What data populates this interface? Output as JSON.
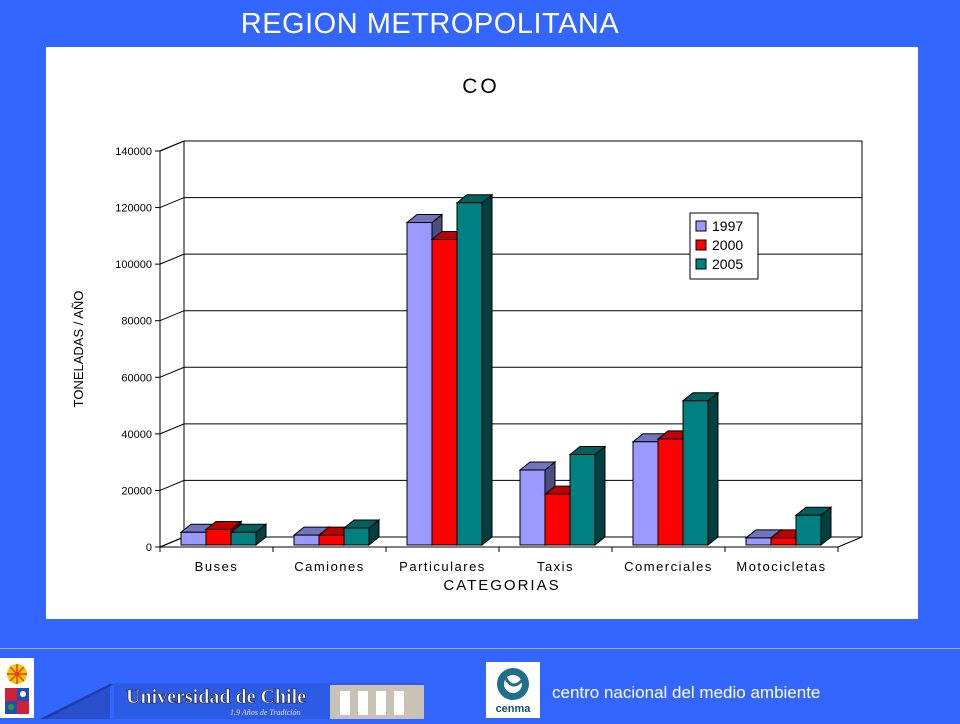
{
  "slide": {
    "title": "REGION METROPOLITANA"
  },
  "footer": {
    "center_name": "centro nacional del medio ambiente",
    "university_name": "Universidad de Chile",
    "university_tagline": "1.9 Años de Tradición",
    "cenma_logo_text": "cenma"
  },
  "colors": {
    "background": "#3366FF",
    "series_1997": "#9999FF",
    "series_2000": "#FF0000",
    "series_2005": "#008080"
  },
  "chart_data": {
    "type": "bar",
    "title": "CO",
    "xlabel": "CATEGORIAS",
    "ylabel": "TONELADAS / AÑO",
    "ylim": [
      0,
      140000
    ],
    "yticks": [
      0,
      20000,
      40000,
      60000,
      80000,
      100000,
      120000,
      140000
    ],
    "grid": true,
    "legend_position": "top-right",
    "three_d": true,
    "categories": [
      "Buses",
      "Camiones",
      "Particulares",
      "Taxis",
      "Comerciales",
      "Motocicletas"
    ],
    "series": [
      {
        "name": "1997",
        "color": "#9999FF",
        "values": [
          4500,
          3500,
          114000,
          26500,
          36500,
          2500
        ]
      },
      {
        "name": "2000",
        "color": "#FF0000",
        "values": [
          5500,
          3500,
          108000,
          18000,
          37500,
          2500
        ]
      },
      {
        "name": "2005",
        "color": "#008080",
        "values": [
          4500,
          6000,
          121000,
          32000,
          51000,
          10500
        ]
      }
    ]
  }
}
